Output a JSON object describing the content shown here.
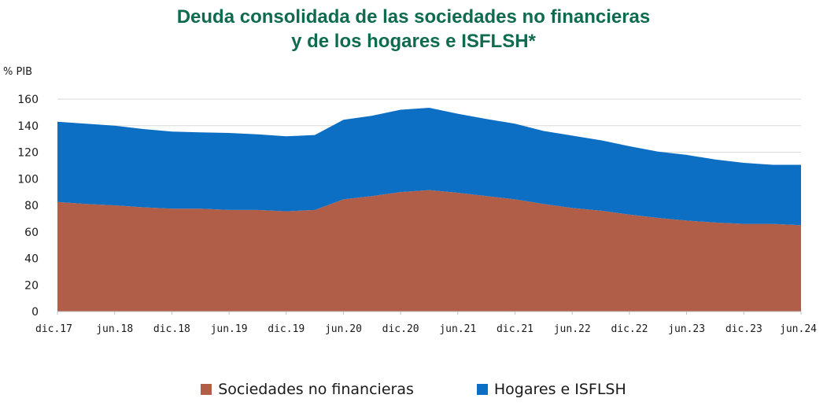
{
  "chart_data": {
    "type": "area",
    "stacked": true,
    "title": [
      "Deuda consolidada de las sociedades no financieras",
      "y de los hogares e ISFLSH*"
    ],
    "ylabel": "% PIB",
    "xlabel": "",
    "ylim": [
      0,
      160
    ],
    "yticks": [
      "0",
      "20",
      "40",
      "60",
      "80",
      "100",
      "120",
      "140",
      "160"
    ],
    "grid": true,
    "x_tick_labels": [
      "dic.17",
      "jun.18",
      "dic.18",
      "jun.19",
      "dic.19",
      "jun.20",
      "dic.20",
      "jun.21",
      "dic.21",
      "jun.22",
      "dic.22",
      "jun.23",
      "dic.23",
      "jun.24"
    ],
    "x": [
      "dic.17",
      "mar.18",
      "jun.18",
      "sep.18",
      "dic.18",
      "mar.19",
      "jun.19",
      "sep.19",
      "dic.19",
      "mar.20",
      "jun.20",
      "sep.20",
      "dic.20",
      "mar.21",
      "jun.21",
      "sep.21",
      "dic.21",
      "mar.22",
      "jun.22",
      "sep.22",
      "dic.22",
      "mar.23",
      "jun.23",
      "sep.23",
      "dic.23",
      "mar.24",
      "jun.24"
    ],
    "series": [
      {
        "name": "Sociedades no financieras",
        "color": "#b05e48",
        "values": [
          82.5,
          81.0,
          80.0,
          78.5,
          77.5,
          77.5,
          76.5,
          76.5,
          75.5,
          76.5,
          84.5,
          87.0,
          90.0,
          91.5,
          89.5,
          87.0,
          84.5,
          81.0,
          78.0,
          76.0,
          73.0,
          70.5,
          68.5,
          67.0,
          66.0,
          66.0,
          65.0
        ]
      },
      {
        "name": "Hogares e ISFLSH",
        "color": "#0d6fc4",
        "values": [
          60.5,
          60.5,
          60.0,
          59.0,
          58.0,
          57.5,
          58.0,
          57.0,
          56.5,
          56.5,
          60.0,
          60.5,
          62.0,
          62.0,
          59.5,
          58.0,
          57.0,
          55.0,
          54.5,
          53.0,
          51.5,
          50.0,
          49.5,
          47.5,
          46.0,
          44.5,
          45.5
        ]
      }
    ],
    "legend": [
      "Sociedades no financieras",
      "Hogares e ISFLSH"
    ]
  }
}
